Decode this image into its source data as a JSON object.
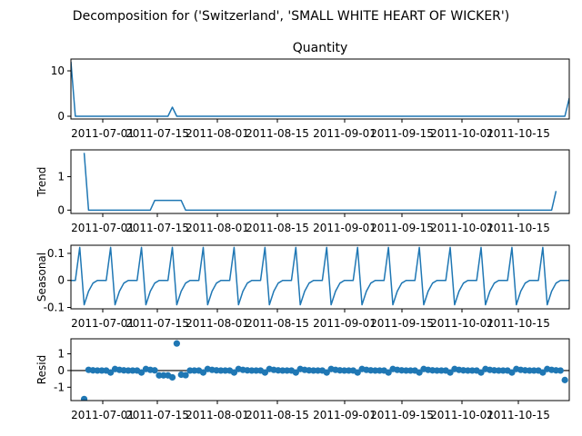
{
  "suptitle": "Decomposition for ('Switzerland', 'SMALL WHITE HEART OF WICKER')",
  "colors": {
    "line": "#1f77b4",
    "marker": "#1f77b4",
    "zero_line": "#000000",
    "axes": "#000000"
  },
  "chart_data": [
    {
      "type": "line",
      "title": "Quantity",
      "ylabel": "",
      "xlim": [
        "2011-07-06",
        "2011-10-27"
      ],
      "ylim": [
        -0.6,
        12.6
      ],
      "y_ticks": [
        0,
        10
      ],
      "x_tick_labels": [
        "2011-07-01",
        "2011-07-15",
        "2011-08-01",
        "2011-08-15",
        "2011-09-01",
        "2011-09-15",
        "2011-10-01",
        "2011-10-15"
      ],
      "series": [
        {
          "points": [
            [
              "2011-07-06",
              12
            ],
            [
              "2011-07-07",
              0
            ],
            [
              "2011-07-28",
              0
            ],
            [
              "2011-07-29",
              2
            ],
            [
              "2011-07-30",
              0
            ],
            [
              "2011-10-26",
              0
            ],
            [
              "2011-10-27",
              4
            ]
          ]
        }
      ]
    },
    {
      "type": "line",
      "title": "",
      "ylabel": "Trend",
      "xlim": [
        "2011-07-06",
        "2011-10-27"
      ],
      "ylim": [
        -0.1,
        1.8
      ],
      "y_ticks": [
        0,
        1
      ],
      "x_tick_labels": [
        "2011-07-01",
        "2011-07-15",
        "2011-08-01",
        "2011-08-15",
        "2011-09-01",
        "2011-09-15",
        "2011-10-01",
        "2011-10-15"
      ],
      "series": [
        {
          "points": [
            [
              "2011-07-09",
              1.71
            ],
            [
              "2011-07-10",
              0
            ],
            [
              "2011-07-24",
              0
            ],
            [
              "2011-07-25",
              0.29
            ],
            [
              "2011-07-31",
              0.29
            ],
            [
              "2011-08-01",
              0
            ],
            [
              "2011-10-23",
              0
            ],
            [
              "2011-10-24",
              0.57
            ]
          ]
        }
      ]
    },
    {
      "type": "line",
      "title": "",
      "ylabel": "Seasonal",
      "xlim": [
        "2011-07-06",
        "2011-10-27"
      ],
      "ylim": [
        -0.105,
        0.13
      ],
      "y_ticks": [
        -0.1,
        0.0,
        0.1
      ],
      "x_tick_labels": [
        "2011-07-01",
        "2011-07-15",
        "2011-08-01",
        "2011-08-15",
        "2011-09-01",
        "2011-09-15",
        "2011-10-01",
        "2011-10-15"
      ],
      "pattern": [
        -0.09,
        -0.04,
        -0.01,
        0.0,
        0.0,
        0.0,
        0.122
      ],
      "pattern_start": "2011-07-09",
      "series": [
        {
          "points": [
            [
              "2011-07-06",
              0.0
            ],
            [
              "2011-07-07",
              0.0
            ],
            [
              "2011-07-08",
              0.122
            ]
          ]
        }
      ]
    },
    {
      "type": "scatter",
      "title": "",
      "ylabel": "Resid",
      "xlim": [
        "2011-07-06",
        "2011-10-27"
      ],
      "ylim": [
        -1.8,
        1.9
      ],
      "y_ticks": [
        -1,
        0,
        1
      ],
      "x_tick_labels": [
        "2011-07-01",
        "2011-07-15",
        "2011-08-01",
        "2011-08-15",
        "2011-09-01",
        "2011-09-15",
        "2011-10-01",
        "2011-10-15"
      ],
      "baseline": 0,
      "start": "2011-07-09",
      "values": [
        -1.71,
        0.04,
        0.01,
        0.0,
        0.0,
        0.0,
        -0.12,
        0.09,
        0.04,
        0.01,
        0.0,
        0.0,
        0.0,
        -0.12,
        0.09,
        0.04,
        0.01,
        -0.29,
        -0.29,
        -0.29,
        -0.41,
        1.62,
        -0.25,
        -0.28,
        0.0,
        0.0,
        0.0,
        -0.12,
        0.09,
        0.04,
        0.01,
        0.0,
        0.0,
        0.0,
        -0.12,
        0.09,
        0.04,
        0.01,
        0.0,
        0.0,
        0.0,
        -0.12,
        0.09,
        0.04,
        0.01,
        0.0,
        0.0,
        0.0,
        -0.12,
        0.09,
        0.04,
        0.01,
        0.0,
        0.0,
        0.0,
        -0.12,
        0.09,
        0.04,
        0.01,
        0.0,
        0.0,
        0.0,
        -0.12,
        0.09,
        0.04,
        0.01,
        0.0,
        0.0,
        0.0,
        -0.12,
        0.09,
        0.04,
        0.01,
        0.0,
        0.0,
        0.0,
        -0.12,
        0.09,
        0.04,
        0.01,
        0.0,
        0.0,
        0.0,
        -0.12,
        0.09,
        0.04,
        0.01,
        0.0,
        0.0,
        0.0,
        -0.12,
        0.09,
        0.04,
        0.01,
        0.0,
        0.0,
        0.0,
        -0.12,
        0.09,
        0.04,
        0.01,
        0.0,
        0.0,
        0.0,
        -0.12,
        0.09,
        0.04,
        0.01,
        0.0,
        -0.57
      ]
    }
  ]
}
